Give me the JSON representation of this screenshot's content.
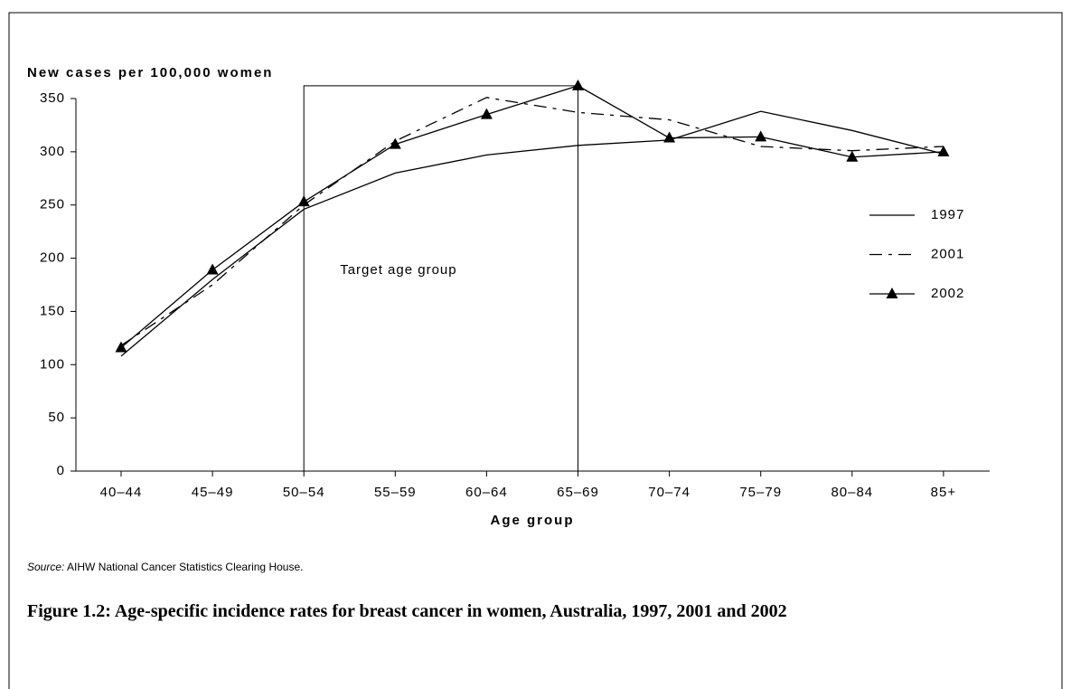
{
  "chart_data": {
    "type": "line",
    "y_label": "New cases per 100,000 women",
    "x_label": "Age group",
    "categories": [
      "40–44",
      "45–49",
      "50–54",
      "55–59",
      "60–64",
      "65–69",
      "70–74",
      "75–79",
      "80–84",
      "85+"
    ],
    "series": [
      {
        "name": "1997",
        "color": "#000000",
        "style": "solid",
        "values": [
          108,
          180,
          246,
          280,
          297,
          306,
          311,
          338,
          320,
          298
        ]
      },
      {
        "name": "2001",
        "color": "#000000",
        "style": "dashdot",
        "values": [
          118,
          175,
          250,
          310,
          351,
          337,
          330,
          305,
          301,
          305
        ]
      },
      {
        "name": "2002",
        "color": "#000000",
        "style": "solid",
        "marker": "triangle",
        "values": [
          116,
          189,
          253,
          307,
          335,
          362,
          313,
          314,
          295,
          300
        ]
      }
    ],
    "ylim": [
      0,
      350
    ],
    "yticks": [
      0,
      50,
      100,
      150,
      200,
      250,
      300,
      350
    ],
    "annotation": "Target age group",
    "legend": "right",
    "source_label": "Source:",
    "source": "AIHW National Cancer Statistics Clearing House.",
    "caption": "Figure 1.2: Age-specific incidence rates for breast cancer in women, Australia, 1997, 2001 and 2002"
  }
}
